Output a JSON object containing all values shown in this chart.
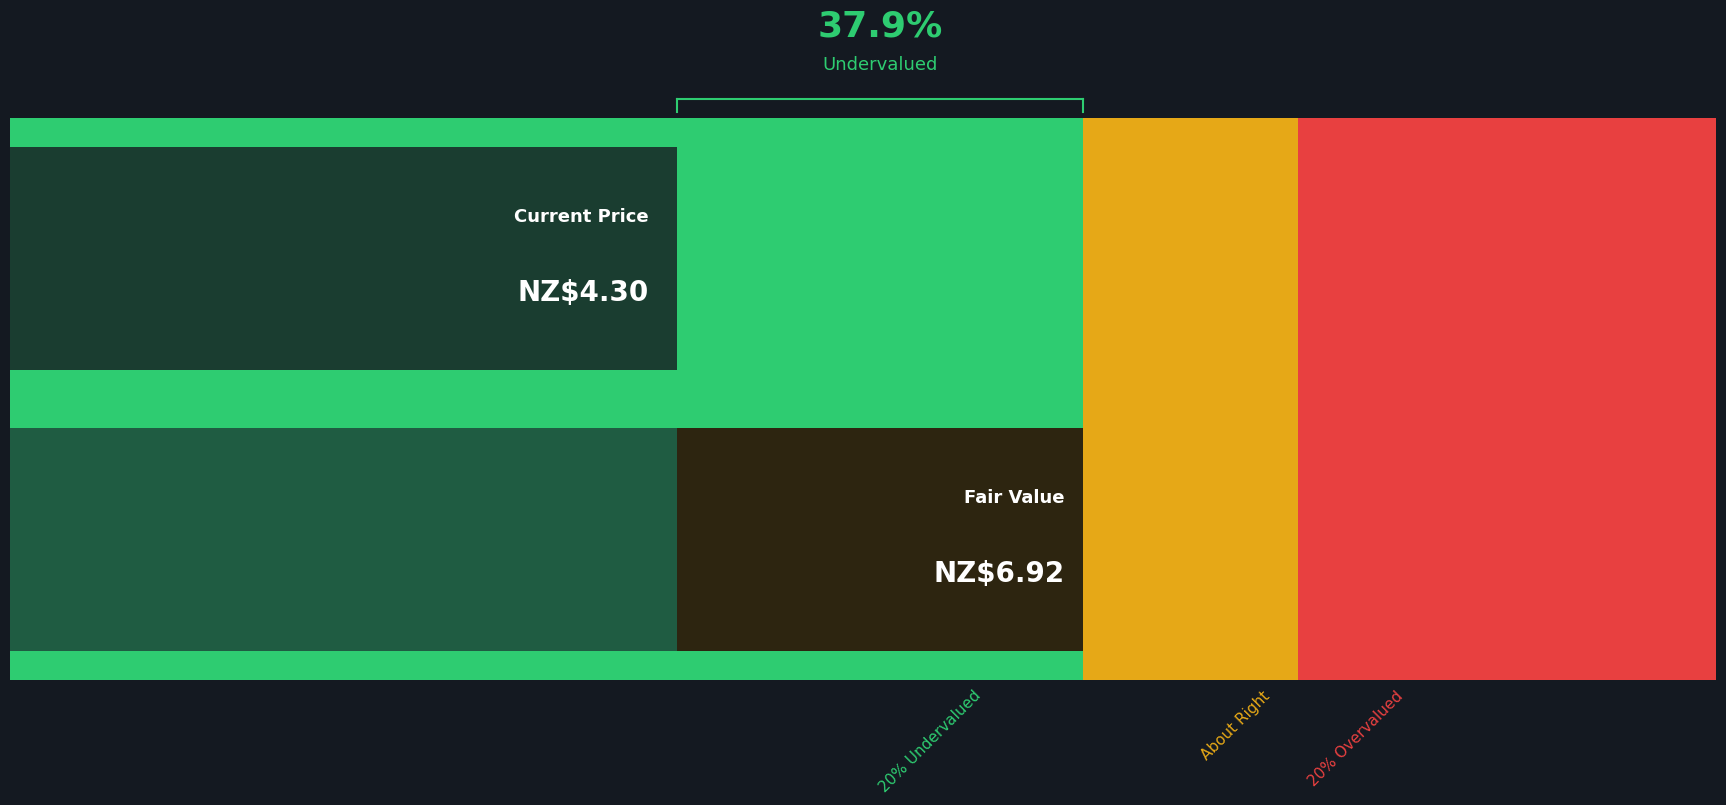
{
  "bg_color": "#141921",
  "current_price": 4.3,
  "fair_value": 6.92,
  "undervalued_pct": "37.9%",
  "undervalued_label": "Undervalued",
  "current_price_label": "Current Price",
  "current_price_text": "NZ$4.30",
  "fair_value_label": "Fair Value",
  "fair_value_text": "NZ$6.92",
  "label_20under": "20% Undervalued",
  "label_about": "About Right",
  "label_20over": "20% Overvalued",
  "color_green_bright": "#2ecc71",
  "color_green_dark": "#1f5c42",
  "color_orange": "#e6a817",
  "color_red": "#e84040",
  "color_dark_box_price": "#1a3d30",
  "color_dark_box_value": "#2d2510",
  "color_text_white": "#ffffff",
  "color_text_green": "#2ecc71",
  "color_text_orange": "#e6a817",
  "color_text_red": "#e84040",
  "xmin": 0.0,
  "xmax": 11.0
}
